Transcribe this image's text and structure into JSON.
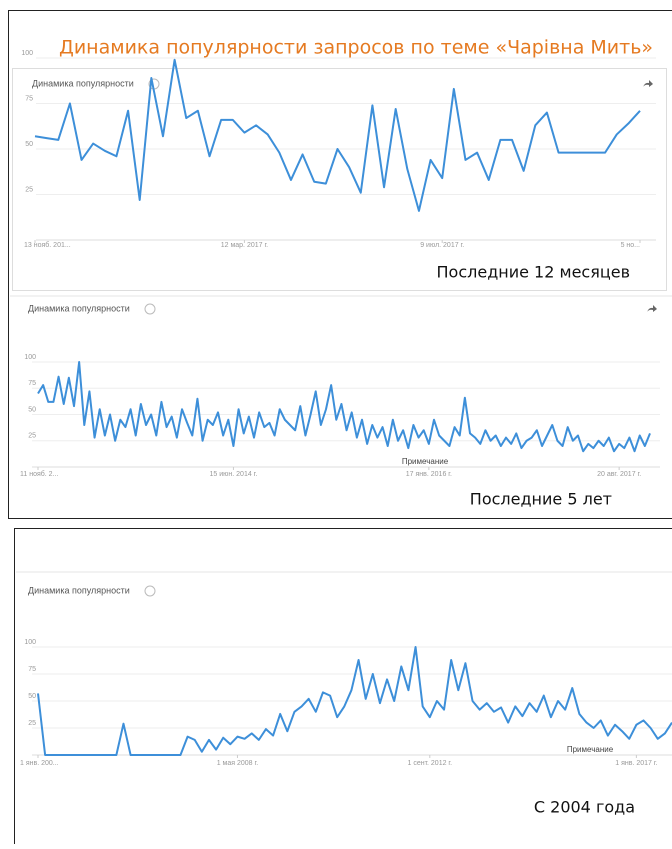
{
  "slide_title": "Динамика популярности запросов по теме «Чарівна Мить»",
  "chart_data": [
    {
      "type": "line",
      "title": "Динамика популярности",
      "caption": "Последние 12 месяцев",
      "color": "#3d8fd9",
      "ylim": [
        0,
        100
      ],
      "yticks": [
        25,
        50,
        75,
        100
      ],
      "grid": true,
      "xlim": [
        0,
        52
      ],
      "xticks": [
        {
          "value": 0,
          "label": "13 нояб. 201..."
        },
        {
          "value": 18,
          "label": "12 мар. 2017 г."
        },
        {
          "value": 35,
          "label": "9 июл. 2017 г."
        },
        {
          "value": 52,
          "label": "5 но..."
        }
      ],
      "values": [
        57,
        56,
        55,
        75,
        44,
        53,
        49,
        46,
        71,
        22,
        89,
        57,
        99,
        67,
        71,
        46,
        66,
        66,
        59,
        63,
        58,
        48,
        33,
        47,
        32,
        31,
        50,
        40,
        26,
        74,
        29,
        72,
        39,
        16,
        44,
        34,
        83,
        44,
        48,
        33,
        55,
        55,
        38,
        63,
        70,
        48,
        48,
        48,
        48,
        48,
        58,
        64,
        71
      ]
    },
    {
      "type": "line",
      "title": "Динамика популярности",
      "caption": "Последние 5 лет",
      "annotation": "Примечание",
      "color": "#3d8fd9",
      "ylim": [
        0,
        100
      ],
      "yticks": [
        25,
        50,
        75,
        100
      ],
      "grid": true,
      "xlim": [
        0,
        119
      ],
      "xticks": [
        {
          "value": 0,
          "label": "11 нояб. 2..."
        },
        {
          "value": 38,
          "label": "15 июн. 2014 г."
        },
        {
          "value": 76,
          "label": "17 янв. 2016 г."
        },
        {
          "value": 113,
          "label": "20 авг. 2017 г."
        }
      ],
      "values": [
        70,
        78,
        62,
        62,
        86,
        60,
        85,
        58,
        100,
        40,
        72,
        28,
        55,
        30,
        50,
        25,
        45,
        38,
        55,
        30,
        60,
        40,
        50,
        30,
        62,
        38,
        48,
        28,
        55,
        42,
        30,
        65,
        25,
        45,
        40,
        52,
        30,
        45,
        20,
        55,
        32,
        48,
        28,
        52,
        38,
        42,
        30,
        55,
        45,
        40,
        35,
        58,
        30,
        50,
        72,
        40,
        55,
        78,
        45,
        60,
        35,
        52,
        28,
        45,
        22,
        40,
        28,
        38,
        20,
        45,
        25,
        35,
        18,
        40,
        28,
        35,
        22,
        45,
        30,
        25,
        20,
        38,
        30,
        66,
        32,
        28,
        22,
        35,
        25,
        30,
        20,
        28,
        22,
        32,
        18,
        25,
        28,
        35,
        20,
        30,
        40,
        25,
        20,
        38,
        25,
        30,
        15,
        22,
        18,
        25,
        20,
        28,
        15,
        22,
        18,
        28,
        15,
        30,
        20,
        32
      ]
    },
    {
      "type": "line",
      "title": "Динамика популярности",
      "caption": "С 2004 года",
      "annotation": "Примечание",
      "color": "#3d8fd9",
      "ylim": [
        0,
        100
      ],
      "yticks": [
        25,
        50,
        75,
        100
      ],
      "grid": true,
      "xlim": [
        0,
        89
      ],
      "xticks": [
        {
          "value": 0,
          "label": "1 янв. 200..."
        },
        {
          "value": 28,
          "label": "1 мая 2008 г."
        },
        {
          "value": 55,
          "label": "1 сент. 2012 г."
        },
        {
          "value": 84,
          "label": "1 янв. 2017 г."
        }
      ],
      "values": [
        57,
        0,
        0,
        0,
        0,
        0,
        0,
        0,
        0,
        0,
        0,
        0,
        29,
        0,
        0,
        0,
        0,
        0,
        0,
        0,
        0,
        17,
        14,
        3,
        14,
        5,
        16,
        10,
        17,
        15,
        20,
        14,
        24,
        18,
        38,
        22,
        40,
        45,
        52,
        40,
        58,
        55,
        35,
        45,
        60,
        88,
        52,
        75,
        48,
        70,
        50,
        82,
        60,
        100,
        45,
        35,
        50,
        42,
        88,
        60,
        85,
        50,
        42,
        48,
        40,
        44,
        30,
        45,
        36,
        48,
        40,
        55,
        35,
        50,
        42,
        62,
        38,
        30,
        25,
        32,
        18,
        28,
        22,
        15,
        28,
        32,
        25,
        15,
        20,
        30
      ]
    }
  ]
}
